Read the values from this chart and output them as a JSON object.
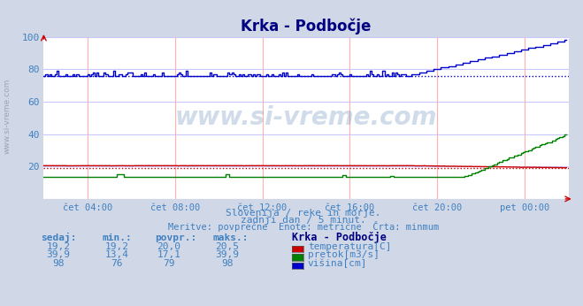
{
  "title": "Krka - Podbočje",
  "title_color": "#000080",
  "bg_color": "#d0d8e8",
  "plot_bg_color": "#ffffff",
  "grid_color_h": "#c8c8ff",
  "grid_color_v": "#ffb0b0",
  "ylim": [
    0,
    100
  ],
  "xlim": [
    0,
    288
  ],
  "xtick_positions": [
    24,
    72,
    120,
    168,
    216,
    264
  ],
  "xtick_labels": [
    "čet 04:00",
    "čet 08:00",
    "čet 12:00",
    "čet 16:00",
    "čet 20:00",
    "pet 00:00"
  ],
  "ytick_positions": [
    20,
    40,
    60,
    80,
    100
  ],
  "watermark": "www.si-vreme.com",
  "sub_text1": "Slovenija / reke in morje.",
  "sub_text2": "zadnji dan / 5 minut.",
  "sub_text3": "Meritve: povprečne  Enote: metrične  Črta: minmum",
  "text_color": "#4080c0",
  "temperature_color": "#cc0000",
  "pretok_color": "#008000",
  "visina_color": "#0000cc",
  "dotted_temperature_y": 19.2,
  "dotted_visina_y": 76,
  "n_points": 288,
  "header_sedaj": "sedaj:",
  "header_min": "min.:",
  "header_povpr": "povpr.:",
  "header_maks": "maks.:",
  "header_station": "Krka - Podbočje",
  "temp_sedaj": "19,2",
  "temp_min": "19,2",
  "temp_avg": "20,0",
  "temp_max": "20,5",
  "pretok_sedaj": "39,9",
  "pretok_min": "13,4",
  "pretok_avg": "17,1",
  "pretok_max": "39,9",
  "visina_sedaj": "98",
  "visina_min": "76",
  "visina_avg": "79",
  "visina_max": "98",
  "label_temp": "temperatura[C]",
  "label_pretok": "pretok[m3/s]",
  "label_visina": "višina[cm]",
  "left_watermark": "www.si-vreme.com"
}
